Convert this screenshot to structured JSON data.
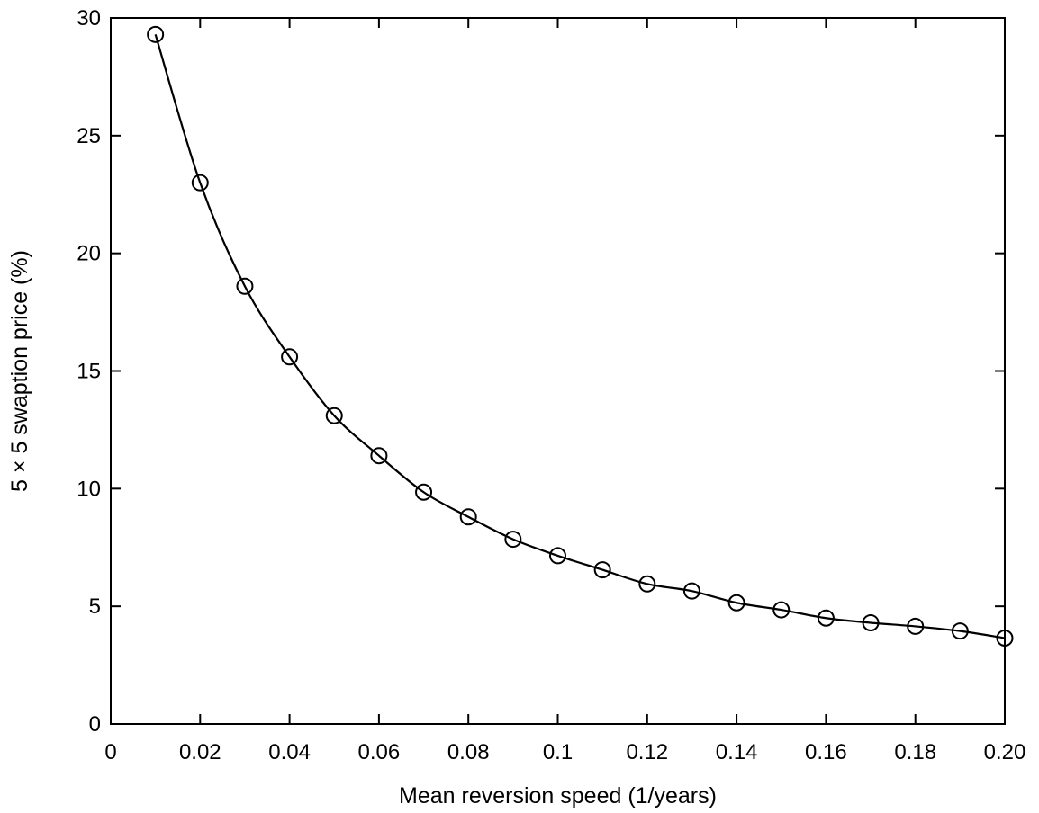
{
  "chart_data": {
    "type": "line",
    "title": "",
    "xlabel": "Mean reversion speed (1/years)",
    "ylabel": "5 × 5 swaption price (%)",
    "xlim": [
      0,
      0.2
    ],
    "ylim": [
      0,
      30
    ],
    "grid": false,
    "marker": "circle",
    "xticks": [
      {
        "value": 0,
        "label": "0"
      },
      {
        "value": 0.02,
        "label": "0.02"
      },
      {
        "value": 0.04,
        "label": "0.04"
      },
      {
        "value": 0.06,
        "label": "0.06"
      },
      {
        "value": 0.08,
        "label": "0.08"
      },
      {
        "value": 0.1,
        "label": "0.1"
      },
      {
        "value": 0.12,
        "label": "0.12"
      },
      {
        "value": 0.14,
        "label": "0.14"
      },
      {
        "value": 0.16,
        "label": "0.16"
      },
      {
        "value": 0.18,
        "label": "0.18"
      },
      {
        "value": 0.2,
        "label": "0.20"
      }
    ],
    "yticks": [
      {
        "value": 0,
        "label": "0"
      },
      {
        "value": 5,
        "label": "5"
      },
      {
        "value": 10,
        "label": "10"
      },
      {
        "value": 15,
        "label": "15"
      },
      {
        "value": 20,
        "label": "20"
      },
      {
        "value": 25,
        "label": "25"
      },
      {
        "value": 30,
        "label": "30"
      }
    ],
    "series": [
      {
        "color": "#000000",
        "x": [
          0.01,
          0.02,
          0.03,
          0.04,
          0.05,
          0.06,
          0.07,
          0.08,
          0.09,
          0.1,
          0.11,
          0.12,
          0.13,
          0.14,
          0.15,
          0.16,
          0.17,
          0.18,
          0.19,
          0.2
        ],
        "y": [
          29.3,
          23.0,
          18.6,
          15.6,
          13.1,
          11.4,
          9.85,
          8.8,
          7.85,
          7.15,
          6.55,
          5.95,
          5.65,
          5.15,
          4.85,
          4.5,
          4.3,
          4.15,
          3.95,
          3.65
        ]
      }
    ]
  }
}
